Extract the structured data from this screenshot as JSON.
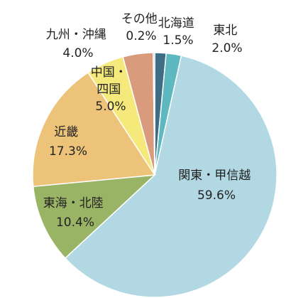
{
  "chart_data": {
    "type": "pie",
    "title": "",
    "start": "12 o'clock",
    "direction": "clockwise",
    "slices": [
      {
        "label": "北海道",
        "value": 1.5,
        "value_label": "1.5%",
        "color": "#3e6d86"
      },
      {
        "label": "東北",
        "value": 2.0,
        "value_label": "2.0%",
        "color": "#5db8bf"
      },
      {
        "label": "関東・甲信越",
        "value": 59.6,
        "value_label": "59.6%",
        "color": "#b2d8e4"
      },
      {
        "label": "東海・北陸",
        "value": 10.4,
        "value_label": "10.4%",
        "color": "#9ab466"
      },
      {
        "label": "近畿",
        "value": 17.3,
        "value_label": "17.3%",
        "color": "#edc37a"
      },
      {
        "label": "中国・四国",
        "value": 5.0,
        "value_label": "5.0%",
        "color": "#f6e97b"
      },
      {
        "label": "九州・沖縄",
        "value": 4.0,
        "value_label": "4.0%",
        "color": "#ffffff"
      },
      {
        "label": "その他",
        "value": 0.2,
        "value_label": "0.2%",
        "color": "#d99b7b"
      }
    ]
  }
}
